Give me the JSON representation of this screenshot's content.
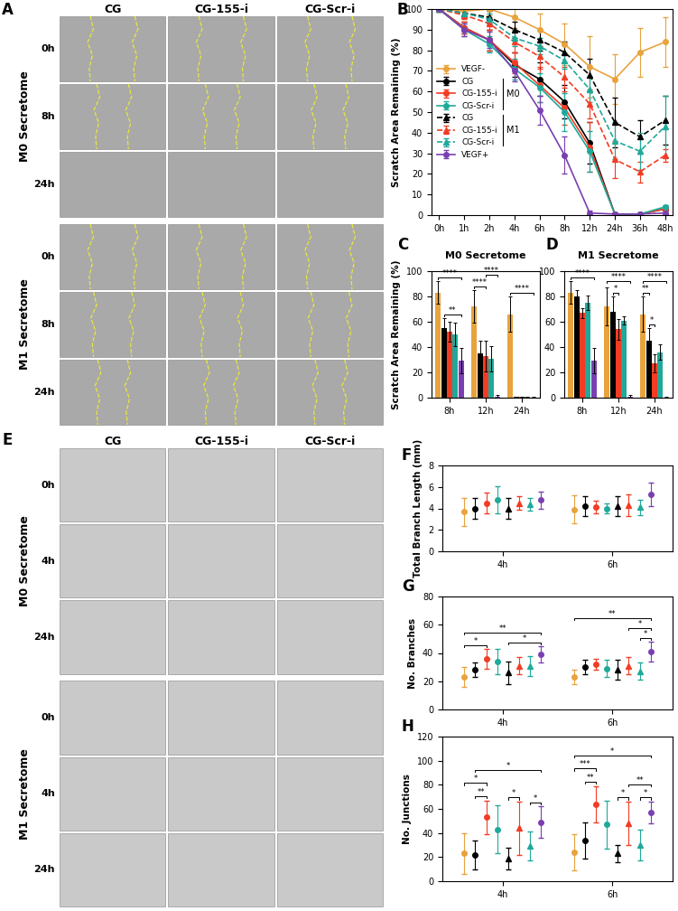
{
  "images": [
    {
      "panel": "A",
      "columns": [
        "CG",
        "CG-155-i",
        "CG-Scr-i"
      ],
      "groups": [
        {
          "label": "M0 Secretome",
          "rows": [
            "0h",
            "8h",
            "24h"
          ]
        },
        {
          "label": "M1 Secretome",
          "rows": [
            "0h",
            "8h",
            "24h"
          ]
        }
      ]
    },
    {
      "panel": "E",
      "columns": [
        "CG",
        "CG-155-i",
        "CG-Scr-i"
      ],
      "groups": [
        {
          "label": "M0 Secretome",
          "rows": [
            "0h",
            "4h",
            "24h"
          ]
        },
        {
          "label": "M1 Secretome",
          "rows": [
            "0h",
            "4h",
            "24h"
          ]
        }
      ]
    }
  ],
  "chart_data": [
    {
      "panel": "B",
      "type": "line",
      "categories": [
        "0h",
        "1h",
        "2h",
        "4h",
        "6h",
        "8h",
        "12h",
        "24h",
        "36h",
        "48h"
      ],
      "y_label": "Scratch Area Remaining (%)",
      "ylim": [
        0,
        100
      ],
      "yticks": [
        0,
        10,
        20,
        30,
        40,
        50,
        60,
        70,
        80,
        90,
        100
      ],
      "legend": "center left",
      "series": [
        {
          "name": "VEGF-",
          "color": "#e8a33d",
          "marker": "circle",
          "line_style": "solid",
          "values": [
            100,
            99,
            100,
            96,
            90,
            83,
            72,
            66,
            79,
            84
          ],
          "errors": [
            1,
            2,
            3,
            5,
            8,
            10,
            15,
            12,
            12,
            12
          ]
        },
        {
          "name": "CG",
          "group": "M0",
          "color": "#000000",
          "marker": "circle",
          "line_style": "solid",
          "values": [
            100,
            91,
            85,
            73,
            66,
            55,
            35,
            0.5,
            0.5,
            3
          ],
          "errors": [
            1,
            3,
            5,
            6,
            8,
            8,
            10,
            0.5,
            0.5,
            1
          ]
        },
        {
          "name": "CG-155-i",
          "group": "M0",
          "color": "#f23c24",
          "marker": "circle",
          "line_style": "solid",
          "values": [
            100,
            91,
            85,
            74,
            63,
            52,
            33,
            0.5,
            0.5,
            3
          ],
          "errors": [
            1,
            3,
            5,
            5,
            8,
            8,
            12,
            0.5,
            0.5,
            1
          ]
        },
        {
          "name": "CG-Scr-i",
          "group": "M0",
          "color": "#1fa99a",
          "marker": "circle",
          "line_style": "solid",
          "values": [
            100,
            90,
            83,
            71,
            62,
            50,
            31,
            0.5,
            0.5,
            4
          ],
          "errors": [
            1,
            3,
            4,
            5,
            7,
            9,
            10,
            0.5,
            0.5,
            1
          ]
        },
        {
          "name": "CG",
          "group": "M1",
          "color": "#000000",
          "marker": "triangle",
          "line_style": "dashed",
          "values": [
            100,
            98,
            96,
            90,
            85,
            79,
            68,
            45,
            38,
            46
          ],
          "errors": [
            1,
            2,
            3,
            4,
            5,
            5,
            8,
            12,
            8,
            12
          ]
        },
        {
          "name": "CG-155-i",
          "group": "M1",
          "color": "#f23c24",
          "marker": "triangle",
          "line_style": "dashed",
          "values": [
            100,
            97,
            93,
            84,
            77,
            67,
            54,
            27,
            21,
            29
          ],
          "errors": [
            1,
            2,
            3,
            5,
            5,
            5,
            7,
            9,
            5,
            3
          ]
        },
        {
          "name": "CG-Scr-i",
          "group": "M1",
          "color": "#1fa99a",
          "marker": "triangle",
          "line_style": "dashed",
          "values": [
            100,
            98,
            95,
            86,
            82,
            75,
            61,
            36,
            31,
            43
          ],
          "errors": [
            1,
            2,
            3,
            4,
            4,
            4,
            6,
            9,
            9,
            15
          ]
        },
        {
          "name": "VEGF+",
          "color": "#7a3fb0",
          "marker": "circle",
          "line_style": "solid",
          "values": [
            100,
            90,
            85,
            70,
            51,
            29,
            1,
            0.5,
            0.5,
            1
          ],
          "errors": [
            1,
            3,
            4,
            5,
            7,
            9,
            1,
            0.5,
            0.5,
            0.5
          ]
        }
      ]
    },
    {
      "panel": "C",
      "type": "bar",
      "title": "M0 Secretome",
      "categories": [
        "8h",
        "12h",
        "24h"
      ],
      "y_label": "Scratch Area Remaining (%)",
      "ylim": [
        0,
        100
      ],
      "yticks": [
        0,
        20,
        40,
        60,
        80,
        100
      ],
      "series": [
        {
          "color": "#e8a33d",
          "values": [
            83,
            72,
            66
          ],
          "errors": [
            9,
            13,
            14
          ]
        },
        {
          "color": "#000000",
          "values": [
            55,
            35,
            0.5
          ],
          "errors": [
            8,
            10,
            0.5
          ]
        },
        {
          "color": "#f23c24",
          "values": [
            52,
            33,
            0.5
          ],
          "errors": [
            8,
            12,
            0.5
          ]
        },
        {
          "color": "#1fa99a",
          "values": [
            50,
            31,
            0.5
          ],
          "errors": [
            9,
            10,
            0.5
          ]
        },
        {
          "color": "#7a3fb0",
          "values": [
            29,
            1,
            0.3
          ],
          "errors": [
            10,
            1,
            0.3
          ]
        }
      ],
      "significance": [
        {
          "text": "****",
          "category": "8h",
          "from": 0,
          "to": 4
        },
        {
          "text": "**",
          "category": "8h",
          "from": 1,
          "to": 4
        },
        {
          "text": "****",
          "category": "12h",
          "from": 0,
          "to": 2
        },
        {
          "text": "****",
          "category": "12h",
          "from": 2,
          "to": 4
        },
        {
          "text": "****",
          "category": "24h",
          "from": 0,
          "to": 4
        }
      ]
    },
    {
      "panel": "D",
      "type": "bar",
      "title": "M1 Secretome",
      "categories": [
        "8h",
        "12h",
        "24h"
      ],
      "ylim": [
        0,
        100
      ],
      "yticks": [
        0,
        20,
        40,
        60,
        80,
        100
      ],
      "series": [
        {
          "color": "#e8a33d",
          "values": [
            83,
            72,
            66
          ],
          "errors": [
            9,
            15,
            14
          ]
        },
        {
          "color": "#000000",
          "values": [
            80,
            68,
            45
          ],
          "errors": [
            5,
            12,
            10
          ]
        },
        {
          "color": "#f23c24",
          "values": [
            67,
            54,
            27
          ],
          "errors": [
            4,
            8,
            7
          ]
        },
        {
          "color": "#1fa99a",
          "values": [
            75,
            61,
            36
          ],
          "errors": [
            6,
            3,
            6
          ]
        },
        {
          "color": "#7a3fb0",
          "values": [
            29,
            1,
            0.3
          ],
          "errors": [
            10,
            1,
            0.3
          ]
        }
      ],
      "significance": [
        {
          "text": "****",
          "category": "8h",
          "from": 0,
          "to": 4
        },
        {
          "text": "*",
          "category": "12h",
          "from": 1,
          "to": 2
        },
        {
          "text": "****",
          "category": "12h",
          "from": 0,
          "to": 4
        },
        {
          "text": "*",
          "category": "24h",
          "from": 1,
          "to": 2
        },
        {
          "text": "**",
          "category": "24h",
          "from": 0,
          "to": 1
        },
        {
          "text": "****",
          "category": "24h",
          "from": 0,
          "to": 4
        }
      ]
    },
    {
      "panel": "F",
      "type": "scatter",
      "categories": [
        "4h",
        "6h"
      ],
      "y_label": "Total Branch Length (mm)",
      "ylim": [
        0,
        8
      ],
      "yticks": [
        0,
        2,
        4,
        6,
        8
      ],
      "series": [
        {
          "color": "#e8a33d",
          "marker": "circle",
          "values": [
            3.7,
            3.9
          ],
          "errors": [
            1.3,
            1.3
          ]
        },
        {
          "color": "#000000",
          "marker": "circle",
          "values": [
            4.0,
            4.2
          ],
          "errors": [
            1.0,
            0.9
          ]
        },
        {
          "color": "#f23c24",
          "marker": "circle",
          "values": [
            4.5,
            4.1
          ],
          "errors": [
            1.0,
            0.6
          ]
        },
        {
          "color": "#1fa99a",
          "marker": "circle",
          "values": [
            4.8,
            4.0
          ],
          "errors": [
            1.3,
            0.5
          ]
        },
        {
          "color": "#000000",
          "marker": "triangle",
          "values": [
            4.0,
            4.2
          ],
          "errors": [
            1.0,
            0.9
          ]
        },
        {
          "color": "#f23c24",
          "marker": "triangle",
          "values": [
            4.5,
            4.3
          ],
          "errors": [
            0.6,
            1.0
          ]
        },
        {
          "color": "#1fa99a",
          "marker": "triangle",
          "values": [
            4.4,
            4.1
          ],
          "errors": [
            0.6,
            0.7
          ]
        },
        {
          "color": "#7a3fb0",
          "marker": "circle",
          "values": [
            4.8,
            5.3
          ],
          "errors": [
            0.8,
            1.1
          ]
        }
      ]
    },
    {
      "panel": "G",
      "type": "scatter",
      "categories": [
        "4h",
        "6h"
      ],
      "y_label": "No. Branches",
      "ylim": [
        0,
        80
      ],
      "yticks": [
        0,
        20,
        40,
        60,
        80
      ],
      "series": [
        {
          "color": "#e8a33d",
          "marker": "circle",
          "values": [
            23,
            23
          ],
          "errors": [
            7,
            5
          ]
        },
        {
          "color": "#000000",
          "marker": "circle",
          "values": [
            28,
            30
          ],
          "errors": [
            5,
            5
          ]
        },
        {
          "color": "#f23c24",
          "marker": "circle",
          "values": [
            36,
            32
          ],
          "errors": [
            7,
            4
          ]
        },
        {
          "color": "#1fa99a",
          "marker": "circle",
          "values": [
            34,
            29
          ],
          "errors": [
            9,
            6
          ]
        },
        {
          "color": "#000000",
          "marker": "triangle",
          "values": [
            26,
            28
          ],
          "errors": [
            8,
            7
          ]
        },
        {
          "color": "#f23c24",
          "marker": "triangle",
          "values": [
            31,
            31
          ],
          "errors": [
            6,
            6
          ]
        },
        {
          "color": "#1fa99a",
          "marker": "triangle",
          "values": [
            31,
            27
          ],
          "errors": [
            7,
            6
          ]
        },
        {
          "color": "#7a3fb0",
          "marker": "circle",
          "values": [
            39,
            41
          ],
          "errors": [
            6,
            7
          ]
        }
      ],
      "significance": [
        {
          "text": "*",
          "category": "4h",
          "from": 0,
          "to": 2
        },
        {
          "text": "**",
          "category": "4h",
          "from": 0,
          "to": 7
        },
        {
          "text": "*",
          "category": "4h",
          "from": 4,
          "to": 7
        },
        {
          "text": "**",
          "category": "6h",
          "from": 0,
          "to": 7
        },
        {
          "text": "*",
          "category": "6h",
          "from": 5,
          "to": 7
        },
        {
          "text": "*",
          "category": "6h",
          "from": 6,
          "to": 7
        }
      ]
    },
    {
      "panel": "H",
      "type": "scatter",
      "categories": [
        "4h",
        "6h"
      ],
      "y_label": "No. Junctions",
      "ylim": [
        0,
        120
      ],
      "yticks": [
        0,
        20,
        40,
        60,
        80,
        100,
        120
      ],
      "series": [
        {
          "color": "#e8a33d",
          "marker": "circle",
          "values": [
            23,
            24
          ],
          "errors": [
            17,
            15
          ]
        },
        {
          "color": "#000000",
          "marker": "circle",
          "values": [
            22,
            34
          ],
          "errors": [
            12,
            15
          ]
        },
        {
          "color": "#f23c24",
          "marker": "circle",
          "values": [
            53,
            64
          ],
          "errors": [
            14,
            15
          ]
        },
        {
          "color": "#1fa99a",
          "marker": "circle",
          "values": [
            43,
            47
          ],
          "errors": [
            20,
            20
          ]
        },
        {
          "color": "#000000",
          "marker": "triangle",
          "values": [
            19,
            23
          ],
          "errors": [
            9,
            7
          ]
        },
        {
          "color": "#f23c24",
          "marker": "triangle",
          "values": [
            44,
            48
          ],
          "errors": [
            22,
            18
          ]
        },
        {
          "color": "#1fa99a",
          "marker": "triangle",
          "values": [
            29,
            30
          ],
          "errors": [
            12,
            13
          ]
        },
        {
          "color": "#7a3fb0",
          "marker": "circle",
          "values": [
            49,
            57
          ],
          "errors": [
            13,
            9
          ]
        }
      ],
      "significance": [
        {
          "text": "**",
          "category": "4h",
          "from": 1,
          "to": 2
        },
        {
          "text": "*",
          "category": "4h",
          "from": 0,
          "to": 2
        },
        {
          "text": "*",
          "category": "4h",
          "from": 4,
          "to": 5
        },
        {
          "text": "*",
          "category": "4h",
          "from": 6,
          "to": 7
        },
        {
          "text": "*",
          "category": "4h",
          "from": 1,
          "to": 7
        },
        {
          "text": "***",
          "category": "6h",
          "from": 0,
          "to": 2
        },
        {
          "text": "**",
          "category": "6h",
          "from": 1,
          "to": 2
        },
        {
          "text": "*",
          "category": "6h",
          "from": 4,
          "to": 5
        },
        {
          "text": "**",
          "category": "6h",
          "from": 5,
          "to": 7
        },
        {
          "text": "*",
          "category": "6h",
          "from": 6,
          "to": 7
        },
        {
          "text": "*",
          "category": "6h",
          "from": 0,
          "to": 7
        }
      ]
    }
  ]
}
